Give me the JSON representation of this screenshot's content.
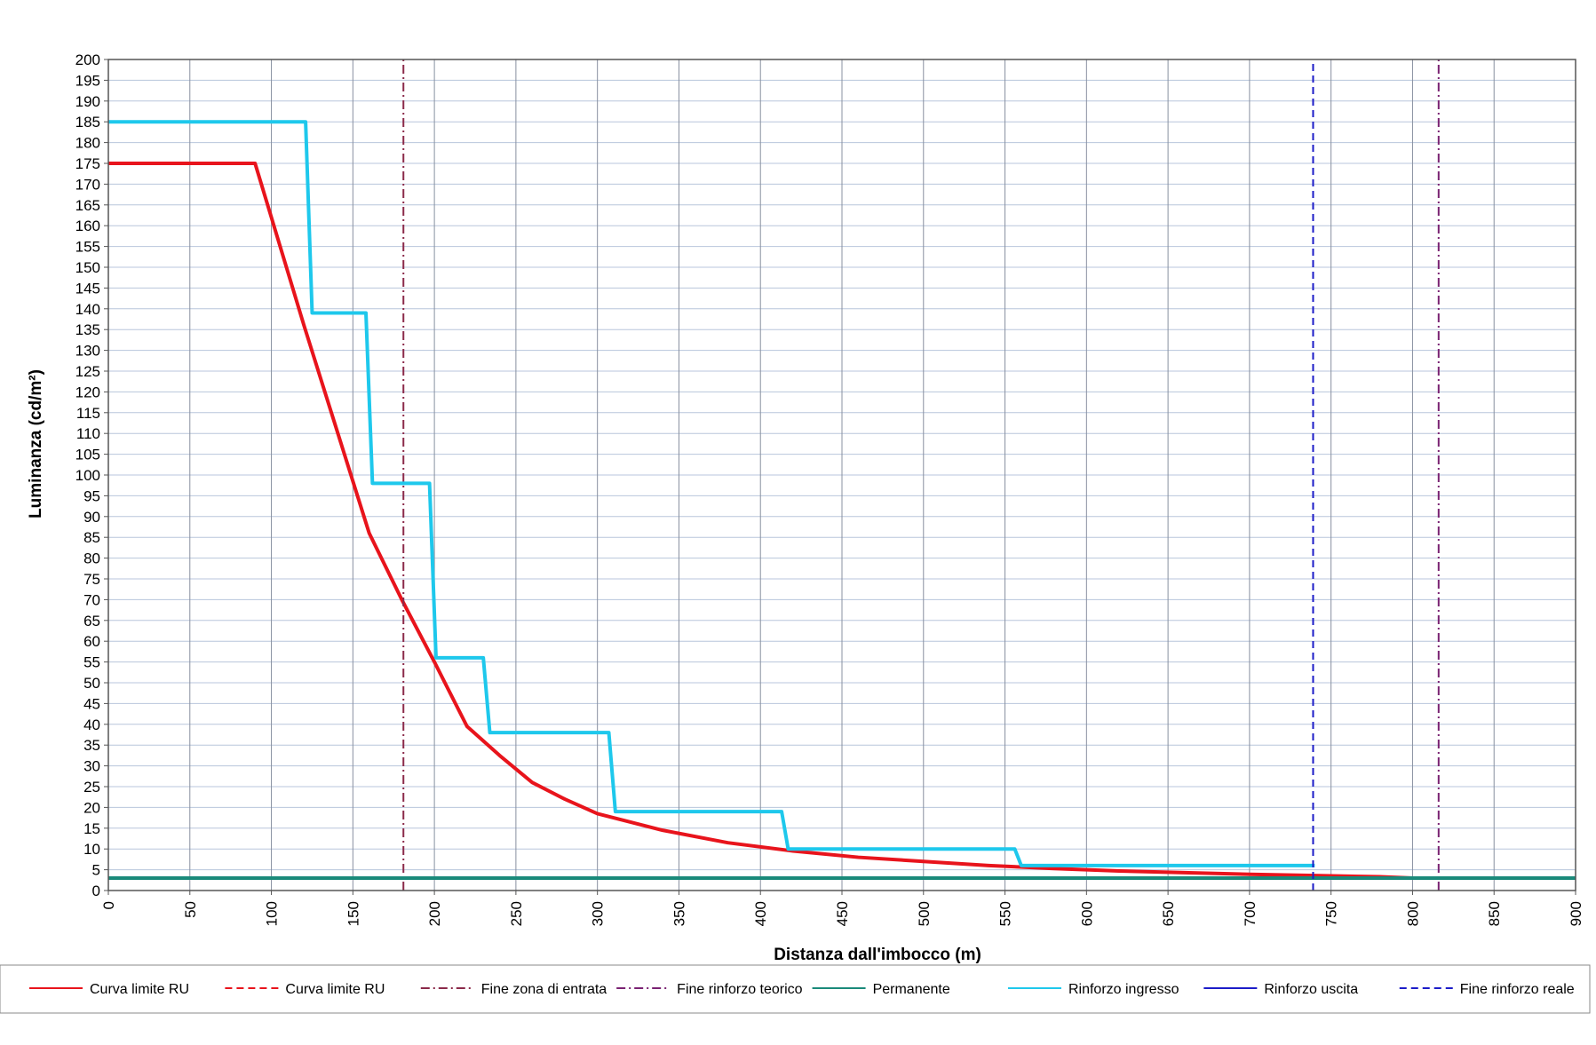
{
  "chart_data": {
    "type": "line",
    "title": "",
    "xlabel": "Distanza dall'imbocco (m)",
    "ylabel": "Luminanza (cd/m²)",
    "xlim": [
      0,
      900
    ],
    "ylim": [
      0,
      200
    ],
    "x_ticks": [
      "0",
      "50",
      "100",
      "150",
      "200",
      "250",
      "300",
      "350",
      "400",
      "450",
      "500",
      "550",
      "600",
      "650",
      "700",
      "750",
      "800",
      "850",
      "900"
    ],
    "y_ticks": [
      "0",
      "5",
      "10",
      "15",
      "20",
      "25",
      "30",
      "35",
      "40",
      "45",
      "50",
      "55",
      "60",
      "65",
      "70",
      "75",
      "80",
      "85",
      "90",
      "95",
      "100",
      "105",
      "110",
      "115",
      "120",
      "125",
      "130",
      "135",
      "140",
      "145",
      "150",
      "155",
      "160",
      "165",
      "170",
      "175",
      "180",
      "185",
      "190",
      "195",
      "200"
    ],
    "grid": true,
    "legend_position": "bottom",
    "series": [
      {
        "name": "Curva limite RU",
        "color": "#e8141c",
        "style": "solid",
        "width": 4,
        "x": [
          0,
          90,
          100,
          120,
          140,
          160,
          180,
          200,
          220,
          240,
          260,
          280,
          300,
          340,
          380,
          420,
          460,
          500,
          540,
          580,
          620,
          660,
          700,
          740,
          780,
          800,
          900
        ],
        "y": [
          175,
          175,
          162,
          136,
          111,
          86,
          70,
          55,
          39.5,
          32.5,
          26,
          22,
          18.5,
          14.5,
          11.5,
          9.5,
          8,
          7,
          6,
          5.3,
          4.7,
          4.3,
          3.9,
          3.6,
          3.3,
          3,
          3
        ]
      },
      {
        "name": "Curva limite RU",
        "color": "#e8141c",
        "style": "dashed",
        "width": 2,
        "x": [],
        "y": []
      },
      {
        "name": "Fine zona di entrata",
        "color": "#8b2a4a",
        "style": "dashdot",
        "width": 2,
        "x": [
          181,
          181
        ],
        "y": [
          0,
          200
        ]
      },
      {
        "name": "Fine rinforzo teorico",
        "color": "#7a2272",
        "style": "dashdot",
        "width": 2,
        "x": [
          816,
          816
        ],
        "y": [
          0,
          200
        ]
      },
      {
        "name": "Permanente",
        "color": "#1a8a7a",
        "style": "solid",
        "width": 4,
        "x": [
          0,
          900
        ],
        "y": [
          3,
          3
        ]
      },
      {
        "name": "Rinforzo ingresso",
        "color": "#1ec8ec",
        "style": "solid",
        "width": 4,
        "x": [
          0,
          121,
          125,
          158,
          162,
          197,
          201,
          230,
          234,
          307,
          311,
          413,
          417,
          556,
          560,
          740
        ],
        "y": [
          185,
          185,
          139,
          139,
          98,
          98,
          56,
          56,
          38,
          38,
          19,
          19,
          10,
          10,
          6,
          6
        ]
      },
      {
        "name": "Rinforzo uscita",
        "color": "#1c1cc8",
        "style": "solid",
        "width": 2,
        "x": [],
        "y": []
      },
      {
        "name": "Fine rinforzo reale",
        "color": "#1c1cc8",
        "style": "dashed",
        "width": 2,
        "x": [
          739,
          739
        ],
        "y": [
          0,
          200
        ]
      }
    ]
  }
}
